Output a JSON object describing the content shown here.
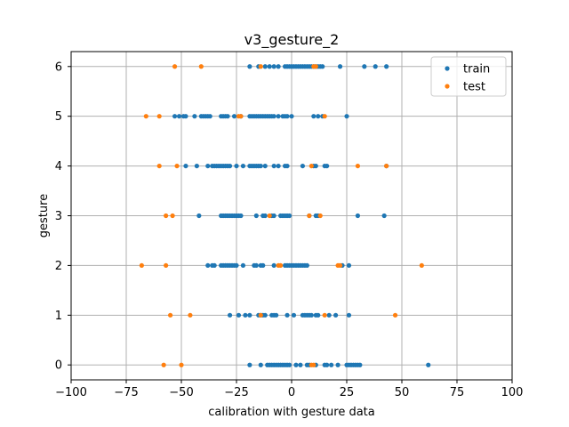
{
  "chart_data": {
    "type": "scatter",
    "title": "v3_gesture_2",
    "xlabel": "calibration with gesture data",
    "ylabel": "gesture",
    "xlim": [
      -100,
      100
    ],
    "ylim": [
      -0.3,
      6.3
    ],
    "xticks": [
      -100,
      -75,
      -50,
      -25,
      0,
      25,
      50,
      75,
      100
    ],
    "xtick_labels": [
      "−100",
      "−75",
      "−50",
      "−25",
      "0",
      "25",
      "50",
      "75",
      "100"
    ],
    "yticks": [
      0,
      1,
      2,
      3,
      4,
      5,
      6
    ],
    "ytick_labels": [
      "0",
      "1",
      "2",
      "3",
      "4",
      "5",
      "6"
    ],
    "grid": true,
    "legend_position": "top-right",
    "series": [
      {
        "name": "train",
        "color": "#1f77b4",
        "points": [
          [
            -19,
            0
          ],
          [
            -14,
            0
          ],
          [
            -11,
            0
          ],
          [
            -10,
            0
          ],
          [
            -9,
            0
          ],
          [
            -8,
            0
          ],
          [
            -7,
            0
          ],
          [
            -6,
            0
          ],
          [
            -5,
            0
          ],
          [
            -4,
            0
          ],
          [
            -3,
            0
          ],
          [
            -2,
            0
          ],
          [
            -1,
            0
          ],
          [
            2,
            0
          ],
          [
            4,
            0
          ],
          [
            7,
            0
          ],
          [
            8,
            0
          ],
          [
            11,
            0
          ],
          [
            15,
            0
          ],
          [
            16,
            0
          ],
          [
            18,
            0
          ],
          [
            21,
            0
          ],
          [
            25,
            0
          ],
          [
            26,
            0
          ],
          [
            27,
            0
          ],
          [
            28,
            0
          ],
          [
            29,
            0
          ],
          [
            30,
            0
          ],
          [
            31,
            0
          ],
          [
            62,
            0
          ],
          [
            -28,
            1
          ],
          [
            -24,
            1
          ],
          [
            -21,
            1
          ],
          [
            -19,
            1
          ],
          [
            -15,
            1
          ],
          [
            -14,
            1
          ],
          [
            -13,
            1
          ],
          [
            -12,
            1
          ],
          [
            -9,
            1
          ],
          [
            -8,
            1
          ],
          [
            -7,
            1
          ],
          [
            -2,
            1
          ],
          [
            1,
            1
          ],
          [
            5,
            1
          ],
          [
            6,
            1
          ],
          [
            7,
            1
          ],
          [
            8,
            1
          ],
          [
            9,
            1
          ],
          [
            11,
            1
          ],
          [
            12,
            1
          ],
          [
            17,
            1
          ],
          [
            20,
            1
          ],
          [
            26,
            1
          ],
          [
            -38,
            2
          ],
          [
            -36,
            2
          ],
          [
            -35,
            2
          ],
          [
            -32,
            2
          ],
          [
            -31,
            2
          ],
          [
            -30,
            2
          ],
          [
            -29,
            2
          ],
          [
            -28,
            2
          ],
          [
            -27,
            2
          ],
          [
            -26,
            2
          ],
          [
            -25,
            2
          ],
          [
            -22,
            2
          ],
          [
            -17,
            2
          ],
          [
            -16,
            2
          ],
          [
            -14,
            2
          ],
          [
            -13,
            2
          ],
          [
            -8,
            2
          ],
          [
            -3,
            2
          ],
          [
            -2,
            2
          ],
          [
            -1,
            2
          ],
          [
            0,
            2
          ],
          [
            1,
            2
          ],
          [
            2,
            2
          ],
          [
            3,
            2
          ],
          [
            4,
            2
          ],
          [
            5,
            2
          ],
          [
            6,
            2
          ],
          [
            7,
            2
          ],
          [
            23,
            2
          ],
          [
            26,
            2
          ],
          [
            -42,
            3
          ],
          [
            -32,
            3
          ],
          [
            -31,
            3
          ],
          [
            -30,
            3
          ],
          [
            -29,
            3
          ],
          [
            -28,
            3
          ],
          [
            -27,
            3
          ],
          [
            -26,
            3
          ],
          [
            -25,
            3
          ],
          [
            -24,
            3
          ],
          [
            -23,
            3
          ],
          [
            -16,
            3
          ],
          [
            -13,
            3
          ],
          [
            -12,
            3
          ],
          [
            -9,
            3
          ],
          [
            -8,
            3
          ],
          [
            -5,
            3
          ],
          [
            -4,
            3
          ],
          [
            -3,
            3
          ],
          [
            -2,
            3
          ],
          [
            -1,
            3
          ],
          [
            8,
            3
          ],
          [
            11,
            3
          ],
          [
            12,
            3
          ],
          [
            30,
            3
          ],
          [
            42,
            3
          ],
          [
            -48,
            4
          ],
          [
            -43,
            4
          ],
          [
            -38,
            4
          ],
          [
            -36,
            4
          ],
          [
            -35,
            4
          ],
          [
            -34,
            4
          ],
          [
            -33,
            4
          ],
          [
            -32,
            4
          ],
          [
            -31,
            4
          ],
          [
            -30,
            4
          ],
          [
            -29,
            4
          ],
          [
            -28,
            4
          ],
          [
            -25,
            4
          ],
          [
            -22,
            4
          ],
          [
            -19,
            4
          ],
          [
            -18,
            4
          ],
          [
            -17,
            4
          ],
          [
            -16,
            4
          ],
          [
            -15,
            4
          ],
          [
            -14,
            4
          ],
          [
            -12,
            4
          ],
          [
            -8,
            4
          ],
          [
            -6,
            4
          ],
          [
            -3,
            4
          ],
          [
            -2,
            4
          ],
          [
            5,
            4
          ],
          [
            10,
            4
          ],
          [
            11,
            4
          ],
          [
            15,
            4
          ],
          [
            16,
            4
          ],
          [
            43,
            4
          ],
          [
            -53,
            5
          ],
          [
            -51,
            5
          ],
          [
            -49,
            5
          ],
          [
            -48,
            5
          ],
          [
            -44,
            5
          ],
          [
            -41,
            5
          ],
          [
            -40,
            5
          ],
          [
            -39,
            5
          ],
          [
            -38,
            5
          ],
          [
            -37,
            5
          ],
          [
            -32,
            5
          ],
          [
            -31,
            5
          ],
          [
            -30,
            5
          ],
          [
            -29,
            5
          ],
          [
            -26,
            5
          ],
          [
            -23,
            5
          ],
          [
            -19,
            5
          ],
          [
            -18,
            5
          ],
          [
            -17,
            5
          ],
          [
            -16,
            5
          ],
          [
            -15,
            5
          ],
          [
            -14,
            5
          ],
          [
            -13,
            5
          ],
          [
            -12,
            5
          ],
          [
            -11,
            5
          ],
          [
            -10,
            5
          ],
          [
            -9,
            5
          ],
          [
            -8,
            5
          ],
          [
            -6,
            5
          ],
          [
            -4,
            5
          ],
          [
            -3,
            5
          ],
          [
            -2,
            5
          ],
          [
            0,
            5
          ],
          [
            10,
            5
          ],
          [
            12,
            5
          ],
          [
            14,
            5
          ],
          [
            25,
            5
          ],
          [
            -19,
            6
          ],
          [
            -15,
            6
          ],
          [
            -12,
            6
          ],
          [
            -10,
            6
          ],
          [
            -8,
            6
          ],
          [
            -6,
            6
          ],
          [
            -3,
            6
          ],
          [
            -2,
            6
          ],
          [
            -1,
            6
          ],
          [
            0,
            6
          ],
          [
            1,
            6
          ],
          [
            2,
            6
          ],
          [
            3,
            6
          ],
          [
            4,
            6
          ],
          [
            5,
            6
          ],
          [
            6,
            6
          ],
          [
            7,
            6
          ],
          [
            8,
            6
          ],
          [
            9,
            6
          ],
          [
            10,
            6
          ],
          [
            11,
            6
          ],
          [
            12,
            6
          ],
          [
            13,
            6
          ],
          [
            14,
            6
          ],
          [
            22,
            6
          ],
          [
            33,
            6
          ],
          [
            38,
            6
          ],
          [
            43,
            6
          ]
        ]
      },
      {
        "name": "test",
        "color": "#ff7f0e",
        "points": [
          [
            -58,
            0
          ],
          [
            -50,
            0
          ],
          [
            9,
            0
          ],
          [
            10,
            0
          ],
          [
            -55,
            1
          ],
          [
            -46,
            1
          ],
          [
            -14,
            1
          ],
          [
            15,
            1
          ],
          [
            47,
            1
          ],
          [
            -68,
            2
          ],
          [
            -57,
            2
          ],
          [
            -6,
            2
          ],
          [
            -5,
            2
          ],
          [
            21,
            2
          ],
          [
            22,
            2
          ],
          [
            59,
            2
          ],
          [
            -57,
            3
          ],
          [
            -54,
            3
          ],
          [
            -10,
            3
          ],
          [
            8,
            3
          ],
          [
            13,
            3
          ],
          [
            -60,
            4
          ],
          [
            -52,
            4
          ],
          [
            9,
            4
          ],
          [
            30,
            4
          ],
          [
            43,
            4
          ],
          [
            -66,
            5
          ],
          [
            -60,
            5
          ],
          [
            -24,
            5
          ],
          [
            -23,
            5
          ],
          [
            15,
            5
          ],
          [
            -53,
            6
          ],
          [
            -41,
            6
          ],
          [
            -14,
            6
          ],
          [
            10,
            6
          ],
          [
            11,
            6
          ]
        ]
      }
    ]
  }
}
